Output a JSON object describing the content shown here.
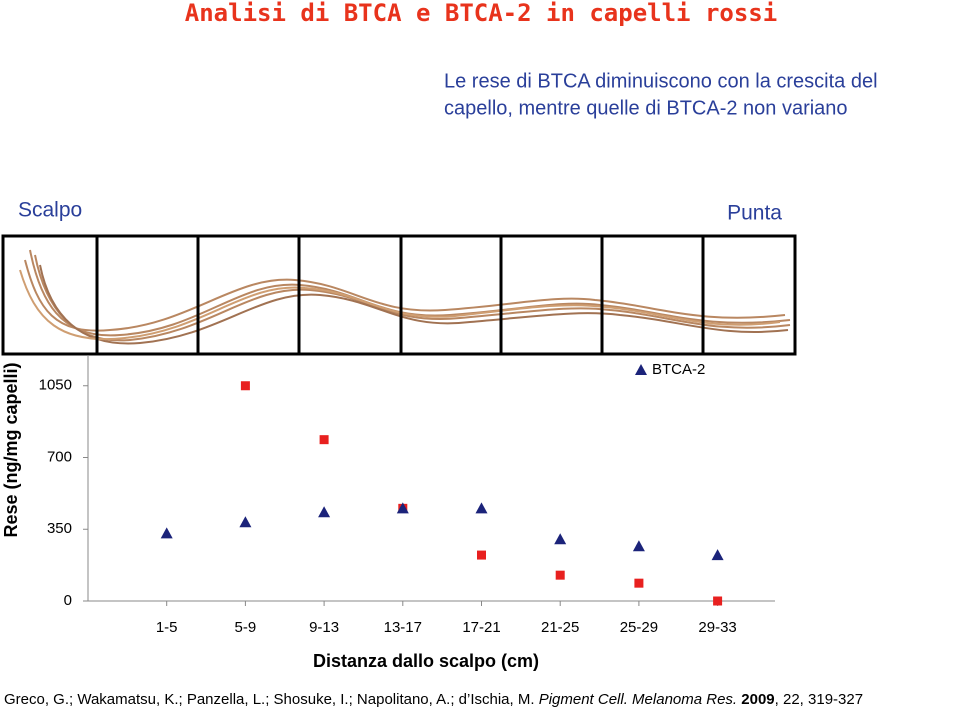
{
  "title": "Analisi di BTCA e BTCA-2 in capelli rossi",
  "subtitle": [
    "Le rese di BTCA diminuiscono con la crescita del",
    "capello, mentre quelle di BTCA-2 non variano"
  ],
  "labels": {
    "scalp": "Scalpo",
    "tip": "Punta"
  },
  "chart_data": {
    "type": "scatter",
    "ylabel": "Rese (ng/mg capelli)",
    "xlabel": "Distanza dallo scalpo (cm)",
    "categories": [
      "1-5",
      "5-9",
      "9-13",
      "13-17",
      "17-21",
      "21-25",
      "25-29",
      "29-33"
    ],
    "series": [
      {
        "color": "#e8201f",
        "marker": "square",
        "values": [
          null,
          1050,
          787,
          452,
          224,
          126,
          87,
          0
        ]
      },
      {
        "name": "BTCA-2",
        "color": "#1b237a",
        "marker": "triangle",
        "values": [
          330,
          384,
          433,
          452,
          452,
          301,
          267,
          224
        ]
      }
    ],
    "ylim": [
      0,
      1200
    ],
    "yticks": [
      0,
      350,
      700,
      1050
    ]
  },
  "citation": {
    "authors": "Greco, G.; Wakamatsu, K.; Panzella, L.; Shosuke, I.; Napolitano, A.; d’Ischia, M. ",
    "journal": "Pigment Cell. Melanoma Res.",
    "year": "2009",
    "rest": ", 22, 319-327"
  }
}
